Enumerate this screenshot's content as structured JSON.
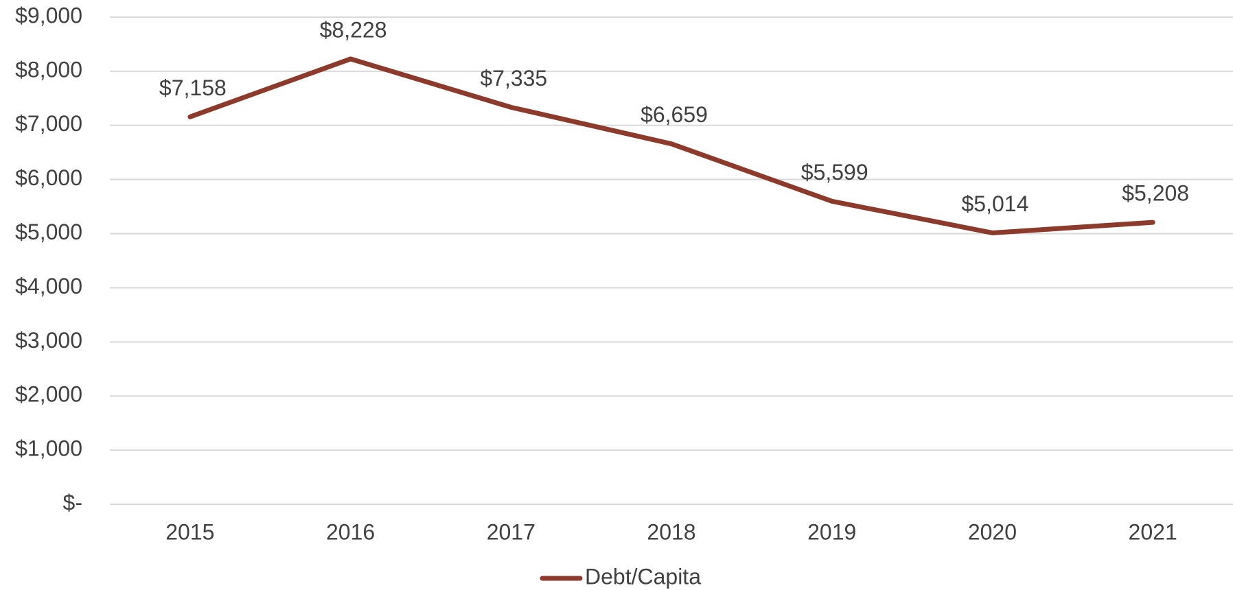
{
  "chart_data": {
    "type": "line",
    "categories": [
      "2015",
      "2016",
      "2017",
      "2018",
      "2019",
      "2020",
      "2021"
    ],
    "series": [
      {
        "name": "Debt/Capita",
        "color": "#8b3a2b",
        "values": [
          7158,
          8228,
          7335,
          6659,
          5599,
          5014,
          5208
        ],
        "value_labels": [
          "$7,158",
          "$8,228",
          "$7,335",
          "$6,659",
          "$5,599",
          "$5,014",
          "$5,208"
        ]
      }
    ],
    "ylim": [
      0,
      9000
    ],
    "yticks": [
      {
        "value": 0,
        "label": "$-"
      },
      {
        "value": 1000,
        "label": "$1,000"
      },
      {
        "value": 2000,
        "label": "$2,000"
      },
      {
        "value": 3000,
        "label": "$3,000"
      },
      {
        "value": 4000,
        "label": "$4,000"
      },
      {
        "value": 5000,
        "label": "$5,000"
      },
      {
        "value": 6000,
        "label": "$6,000"
      },
      {
        "value": 7000,
        "label": "$7,000"
      },
      {
        "value": 8000,
        "label": "$8,000"
      },
      {
        "value": 9000,
        "label": "$9,000"
      }
    ],
    "grid": true,
    "legend": "bottom"
  }
}
